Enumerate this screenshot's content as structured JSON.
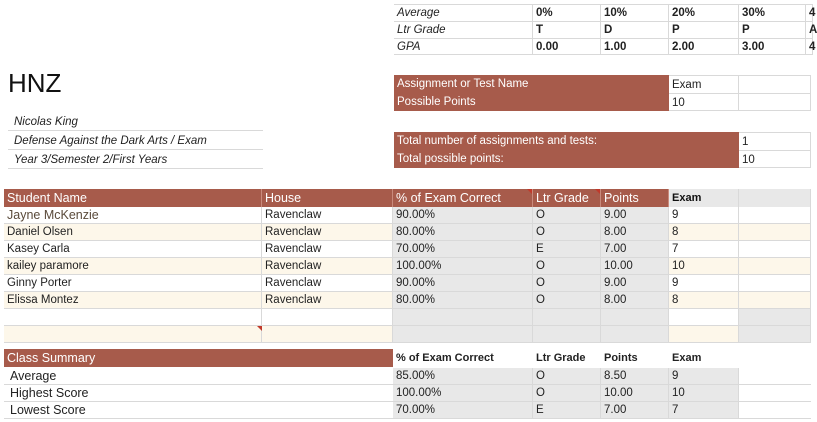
{
  "title": "HNZ",
  "info": {
    "teacher": "Nicolas King",
    "course": "Defense Against the Dark Arts / Exam",
    "term": "Year 3/Semester 2/First Years"
  },
  "scale": {
    "rows": [
      {
        "label": "Average",
        "values": [
          "0%",
          "10%",
          "20%",
          "30%",
          "4"
        ]
      },
      {
        "label": "Ltr Grade",
        "values": [
          "T",
          "D",
          "P",
          "P",
          "A"
        ]
      },
      {
        "label": "GPA",
        "values": [
          "0.00",
          "1.00",
          "2.00",
          "3.00",
          "4"
        ]
      }
    ]
  },
  "assignment": {
    "name_label": "Assignment or Test Name",
    "name_value": "Exam",
    "points_label": "Possible Points",
    "points_value": "10"
  },
  "totals": {
    "count_label": "Total number of assignments and tests:",
    "count_value": "1",
    "points_label": "Total possible points:",
    "points_value": "10"
  },
  "table": {
    "headers": [
      "Student Name",
      "House",
      "% of Exam Correct",
      "Ltr Grade",
      "Points",
      "Exam"
    ],
    "rows": [
      [
        "Jayne McKenzie",
        "Ravenclaw",
        "90.00%",
        "O",
        "9.00",
        "9"
      ],
      [
        "Daniel Olsen",
        "Ravenclaw",
        "80.00%",
        "O",
        "8.00",
        "8"
      ],
      [
        "Kasey Carla",
        "Ravenclaw",
        "70.00%",
        "E",
        "7.00",
        "7"
      ],
      [
        "kailey paramore",
        "Ravenclaw",
        "100.00%",
        "O",
        "10.00",
        "10"
      ],
      [
        "Ginny Porter",
        "Ravenclaw",
        "90.00%",
        "O",
        "9.00",
        "9"
      ],
      [
        "Elissa Montez",
        "Ravenclaw",
        "80.00%",
        "O",
        "8.00",
        "8"
      ]
    ]
  },
  "summary": {
    "title": "Class Summary",
    "headers": [
      "% of Exam Correct",
      "Ltr Grade",
      "Points",
      "Exam"
    ],
    "rows": [
      {
        "label": "Average",
        "values": [
          "85.00%",
          "O",
          "8.50",
          "9"
        ]
      },
      {
        "label": "Highest Score",
        "values": [
          "100.00%",
          "O",
          "10.00",
          "10"
        ]
      },
      {
        "label": "Lowest Score",
        "values": [
          "70.00%",
          "E",
          "7.00",
          "7"
        ]
      }
    ]
  },
  "colors": {
    "header": "#a75b4b",
    "shade": "#e8e8e8",
    "cream": "#fdf7ea"
  }
}
